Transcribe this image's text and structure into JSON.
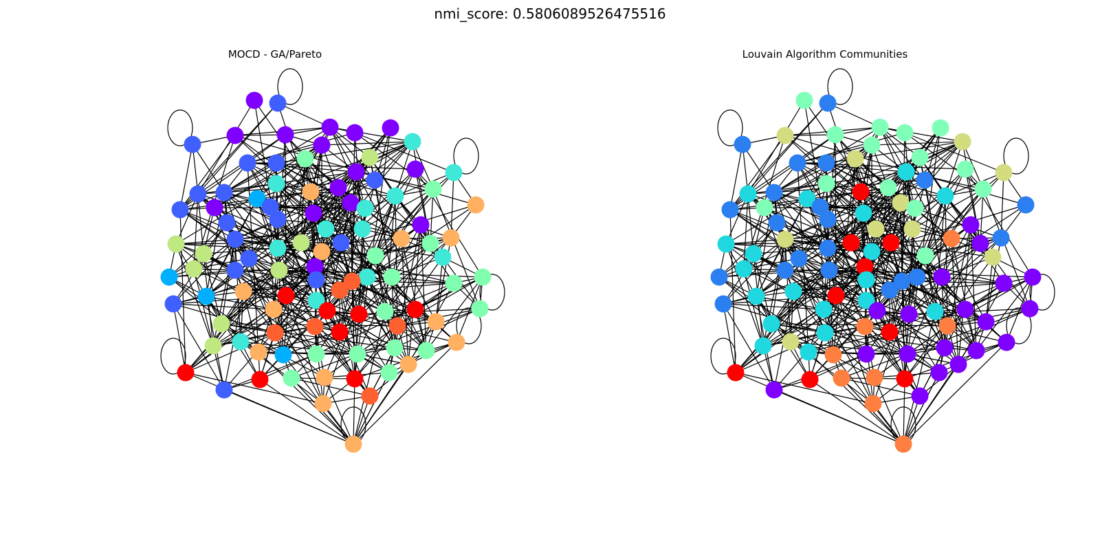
{
  "figure": {
    "suptitle": "nmi_score: 0.5806089526475516"
  },
  "panels": [
    {
      "title": "MOCD - GA/Pareto"
    },
    {
      "title": "Louvain Algorithm Communities"
    }
  ],
  "palette": {
    "purple": "#7f00ff",
    "blue": "#3f5fff",
    "sky": "#00b0ff",
    "cyan": "#40e8d8",
    "mint": "#80ffb0",
    "lime": "#c0e880",
    "orange": "#ffb060",
    "coral": "#ff6030",
    "red": "#ff0000"
  },
  "palette_right": {
    "purple": "#7f00ff",
    "blue": "#2c7ff0",
    "cyan": "#20d8e0",
    "mint": "#80ffb8",
    "olive": "#d4dc80",
    "orange": "#ff7f40",
    "red": "#ff0000"
  }
}
